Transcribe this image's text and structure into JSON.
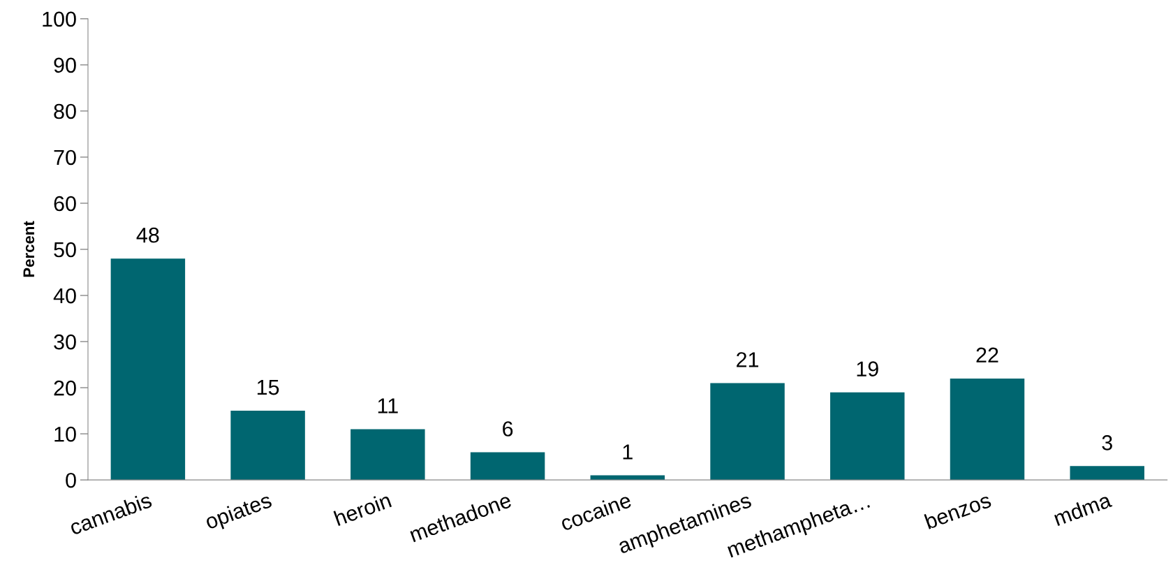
{
  "chart_data": {
    "type": "bar",
    "ylabel": "Percent",
    "categories": [
      "cannabis",
      "opiates",
      "heroin",
      "methadone",
      "cocaine",
      "amphetamines",
      "methampheta…",
      "benzos",
      "mdma"
    ],
    "values": [
      48,
      15,
      11,
      6,
      1,
      21,
      19,
      22,
      3
    ],
    "color": "#006670",
    "ylim": [
      0,
      100
    ],
    "yticks": [
      0,
      10,
      20,
      30,
      40,
      50,
      60,
      70,
      80,
      90,
      100
    ],
    "data_labels": true,
    "grid": false
  }
}
